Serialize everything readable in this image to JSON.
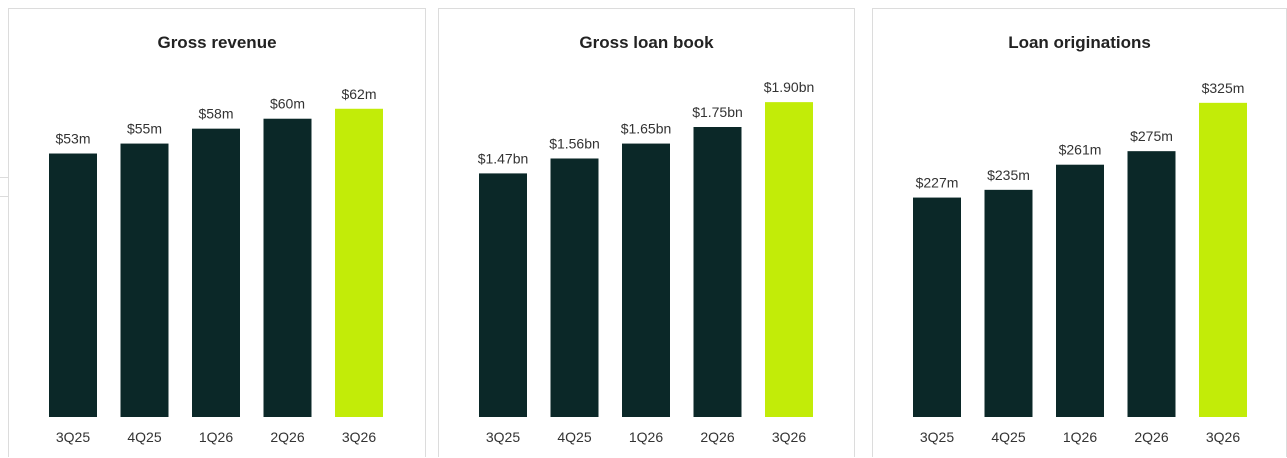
{
  "colors": {
    "bar": "#0b2828",
    "highlight": "#c2ec08",
    "border": "#dcdcdc"
  },
  "chart_data": [
    {
      "type": "bar",
      "title": "Gross revenue",
      "categories": [
        "3Q25",
        "4Q25",
        "1Q26",
        "2Q26",
        "3Q26"
      ],
      "values": [
        53,
        55,
        58,
        60,
        62
      ],
      "value_labels": [
        "$53m",
        "$55m",
        "$58m",
        "$60m",
        "$62m"
      ],
      "highlight_index": 4,
      "ylim": [
        0,
        70
      ],
      "grid": false
    },
    {
      "type": "bar",
      "title": "Gross loan book",
      "categories": [
        "3Q25",
        "4Q25",
        "1Q26",
        "2Q26",
        "3Q26"
      ],
      "values": [
        1.47,
        1.56,
        1.65,
        1.75,
        1.9
      ],
      "value_labels": [
        "$1.47bn",
        "$1.56bn",
        "$1.65bn",
        "$1.75bn",
        "$1.90bn"
      ],
      "highlight_index": 4,
      "ylim": [
        0,
        2.1
      ],
      "grid": false
    },
    {
      "type": "bar",
      "title": "Loan originations",
      "categories": [
        "3Q25",
        "4Q25",
        "1Q26",
        "2Q26",
        "3Q26"
      ],
      "values": [
        227,
        235,
        261,
        275,
        325
      ],
      "value_labels": [
        "$227m",
        "$235m",
        "$261m",
        "$275m",
        "$325m"
      ],
      "highlight_index": 4,
      "ylim": [
        0,
        360
      ],
      "grid": false
    }
  ]
}
